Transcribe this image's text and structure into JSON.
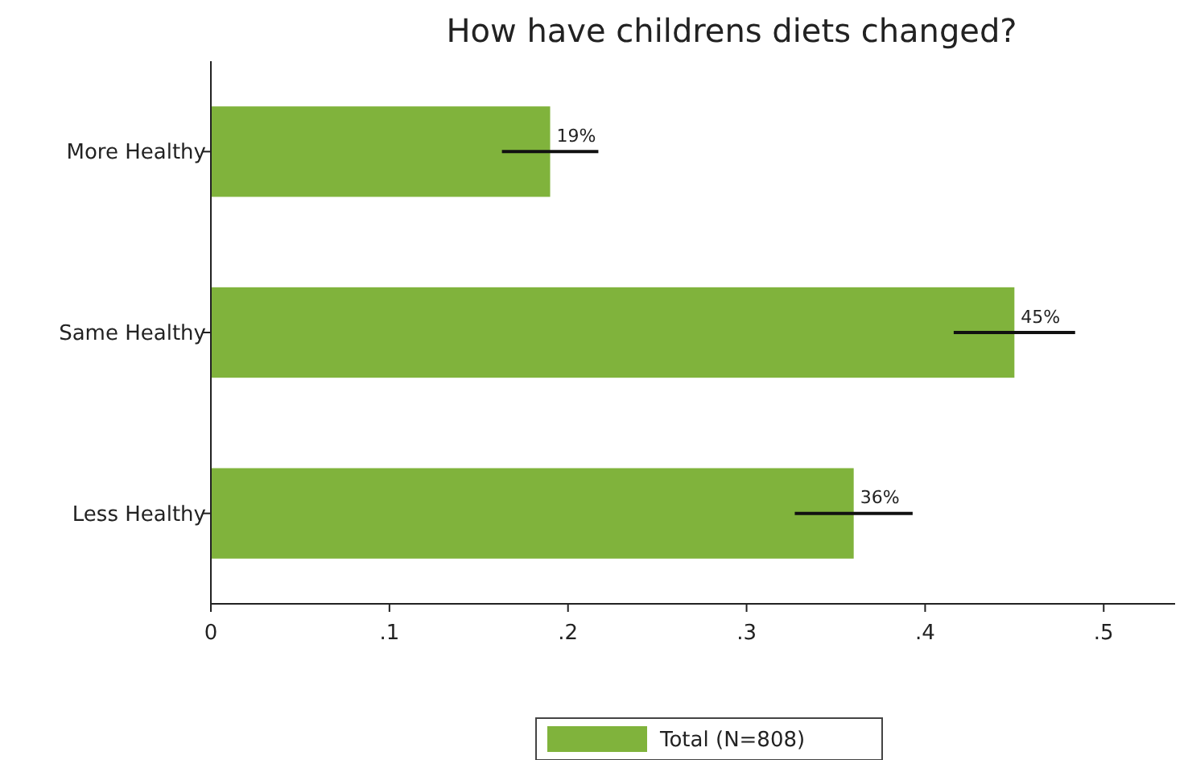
{
  "chart_data": {
    "type": "bar",
    "orientation": "horizontal",
    "title": "How have childrens diets changed?",
    "categories": [
      "More Healthy",
      "Same Healthy",
      "Less Healthy"
    ],
    "series": [
      {
        "name": "Total (N=808)",
        "color": "#80b33c",
        "values": [
          0.19,
          0.45,
          0.36
        ],
        "errors": [
          0.027,
          0.034,
          0.033
        ],
        "value_labels": [
          "19%",
          "45%",
          "36%"
        ]
      }
    ],
    "xlim": [
      0,
      0.54
    ],
    "xticks": [
      {
        "value": 0,
        "label": "0"
      },
      {
        "value": 0.1,
        "label": ".1"
      },
      {
        "value": 0.2,
        "label": ".2"
      },
      {
        "value": 0.3,
        "label": ".3"
      },
      {
        "value": 0.4,
        "label": ".4"
      },
      {
        "value": 0.5,
        "label": ".5"
      }
    ],
    "legend": "bottom",
    "grid": false
  }
}
